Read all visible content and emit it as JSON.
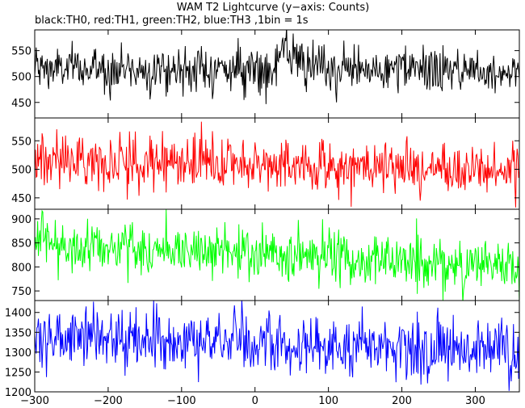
{
  "chart_data": {
    "type": "line",
    "title": "WAM T2 Lightcurve (y−axis: Counts)",
    "subtitle": "black:TH0, red:TH1, green:TH2, blue:TH3 ,1bin = 1s",
    "xlabel": "",
    "xlim": [
      -300,
      360
    ],
    "x_ticks": [
      -300,
      -200,
      -100,
      0,
      100,
      200,
      300
    ],
    "x_tick_labels": [
      "−300",
      "−200",
      "−100",
      "0",
      "100",
      "200",
      "300"
    ],
    "grid": false,
    "panels": [
      {
        "series_name": "TH0",
        "color": "#000000",
        "ylim": [
          420,
          590
        ],
        "y_ticks": [
          450,
          500,
          550
        ],
        "y_tick_labels": [
          "450",
          "500",
          "550"
        ],
        "mean": 515,
        "sigma": 22,
        "trend_start": 515,
        "trend_end": 512,
        "features": [
          {
            "x_center": 35,
            "width": 18,
            "amplitude": 35
          },
          {
            "x_center": 23,
            "width": 6,
            "amplitude": -40
          }
        ]
      },
      {
        "series_name": "TH1",
        "color": "#ff0000",
        "ylim": [
          430,
          590
        ],
        "y_ticks": [
          450,
          500,
          550
        ],
        "y_tick_labels": [
          "450",
          "500",
          "550"
        ],
        "mean": 515,
        "sigma": 23,
        "trend_start": 518,
        "trend_end": 497,
        "features": []
      },
      {
        "series_name": "TH2",
        "color": "#00ff00",
        "ylim": [
          730,
          920
        ],
        "y_ticks": [
          750,
          800,
          850,
          900
        ],
        "y_tick_labels": [
          "750",
          "800",
          "850",
          "900"
        ],
        "mean": 825,
        "sigma": 28,
        "trend_start": 850,
        "trend_end": 800,
        "features": []
      },
      {
        "series_name": "TH3",
        "color": "#0000ff",
        "ylim": [
          1200,
          1430
        ],
        "y_ticks": [
          1200,
          1250,
          1300,
          1350,
          1400
        ],
        "y_tick_labels": [
          "1200",
          "1250",
          "1300",
          "1350",
          "1400"
        ],
        "mean": 1320,
        "sigma": 38,
        "trend_start": 1340,
        "trend_end": 1300,
        "features": []
      }
    ]
  }
}
